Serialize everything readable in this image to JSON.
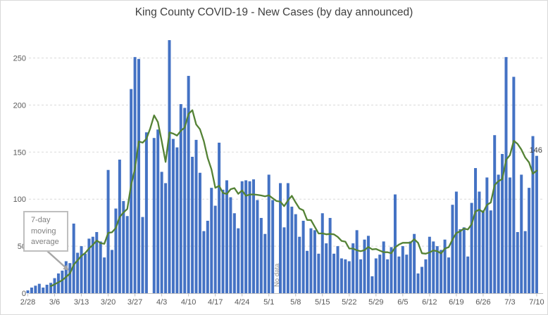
{
  "title": "King County COVID-19 - New Cases (by day announced)",
  "annotation": {
    "label": "7-day moving average"
  },
  "no_data_label": "No data",
  "last_point_label": "146",
  "colors": {
    "bar": "#4472c4",
    "line": "#548235",
    "grid": "#d9d9d9",
    "axis": "#bfbfbf",
    "tick_text": "#595959",
    "title_text": "#404040",
    "annotation_text": "#808080",
    "annotation_border": "#bfbfbf",
    "arrow": "#a6a6a6",
    "data_label": "#404040"
  },
  "chart_data": {
    "type": "bar",
    "title": "King County COVID-19 - New Cases (by day announced)",
    "xlabel": "",
    "ylabel": "",
    "ylim": [
      0,
      275
    ],
    "y_ticks": [
      0,
      50,
      100,
      150,
      200,
      250
    ],
    "grid": "horizontal-dashed",
    "legend": "none",
    "x_tick_labels": [
      "2/28",
      "3/6",
      "3/13",
      "3/20",
      "3/27",
      "4/3",
      "4/10",
      "4/17",
      "4/24",
      "5/1",
      "5/8",
      "5/15",
      "5/22",
      "5/29",
      "6/5",
      "6/12",
      "6/19",
      "6/26",
      "7/3",
      "7/10"
    ],
    "no_data_dates": [
      "3/31",
      "5/3"
    ],
    "categories": [
      "2/28",
      "2/29",
      "3/1",
      "3/2",
      "3/3",
      "3/4",
      "3/5",
      "3/6",
      "3/7",
      "3/8",
      "3/9",
      "3/10",
      "3/11",
      "3/12",
      "3/13",
      "3/14",
      "3/15",
      "3/16",
      "3/17",
      "3/18",
      "3/19",
      "3/20",
      "3/21",
      "3/22",
      "3/23",
      "3/24",
      "3/25",
      "3/26",
      "3/27",
      "3/28",
      "3/29",
      "3/30",
      "3/31",
      "4/1",
      "4/2",
      "4/3",
      "4/4",
      "4/5",
      "4/6",
      "4/7",
      "4/8",
      "4/9",
      "4/10",
      "4/11",
      "4/12",
      "4/13",
      "4/14",
      "4/15",
      "4/16",
      "4/17",
      "4/18",
      "4/19",
      "4/20",
      "4/21",
      "4/22",
      "4/23",
      "4/24",
      "4/25",
      "4/26",
      "4/27",
      "4/28",
      "4/29",
      "4/30",
      "5/1",
      "5/2",
      "5/3",
      "5/4",
      "5/5",
      "5/6",
      "5/7",
      "5/8",
      "5/9",
      "5/10",
      "5/11",
      "5/12",
      "5/13",
      "5/14",
      "5/15",
      "5/16",
      "5/17",
      "5/18",
      "5/19",
      "5/20",
      "5/21",
      "5/22",
      "5/23",
      "5/24",
      "5/25",
      "5/26",
      "5/27",
      "5/28",
      "5/29",
      "5/30",
      "5/31",
      "6/1",
      "6/2",
      "6/3",
      "6/4",
      "6/5",
      "6/6",
      "6/7",
      "6/8",
      "6/9",
      "6/10",
      "6/11",
      "6/12",
      "6/13",
      "6/14",
      "6/15",
      "6/16",
      "6/17",
      "6/18",
      "6/19",
      "6/20",
      "6/21",
      "6/22",
      "6/23",
      "6/24",
      "6/25",
      "6/26",
      "6/27",
      "6/28",
      "6/29",
      "6/30",
      "7/1",
      "7/2",
      "7/3",
      "7/4",
      "7/5",
      "7/6",
      "7/7",
      "7/8",
      "7/9",
      "7/10"
    ],
    "series": [
      {
        "name": "New cases (by day announced)",
        "type": "bar",
        "values": [
          3,
          6,
          8,
          10,
          6,
          9,
          11,
          16,
          21,
          24,
          34,
          32,
          74,
          43,
          50,
          42,
          58,
          60,
          65,
          55,
          38,
          131,
          46,
          90,
          142,
          98,
          82,
          217,
          251,
          249,
          81,
          171,
          null,
          165,
          174,
          129,
          117,
          269,
          164,
          155,
          201,
          197,
          231,
          145,
          163,
          128,
          66,
          77,
          112,
          93,
          160,
          110,
          120,
          102,
          85,
          69,
          119,
          120,
          119,
          121,
          99,
          80,
          63,
          126,
          99,
          null,
          117,
          70,
          117,
          92,
          84,
          60,
          77,
          45,
          69,
          67,
          42,
          85,
          53,
          80,
          42,
          50,
          37,
          36,
          34,
          53,
          67,
          36,
          57,
          61,
          18,
          37,
          41,
          55,
          36,
          49,
          105,
          39,
          50,
          41,
          55,
          63,
          21,
          28,
          36,
          60,
          55,
          50,
          46,
          57,
          38,
          94,
          108,
          68,
          70,
          39,
          96,
          133,
          108,
          88,
          123,
          88,
          168,
          126,
          148,
          251,
          123,
          230,
          65,
          126,
          66,
          112,
          167,
          146
        ]
      },
      {
        "name": "7-day moving average",
        "type": "line",
        "derived": "trailing-7-day-mean-of-bar-series-ignoring-nulls"
      }
    ],
    "last_point": {
      "category": "7/10",
      "value": 146,
      "label": "146"
    }
  }
}
